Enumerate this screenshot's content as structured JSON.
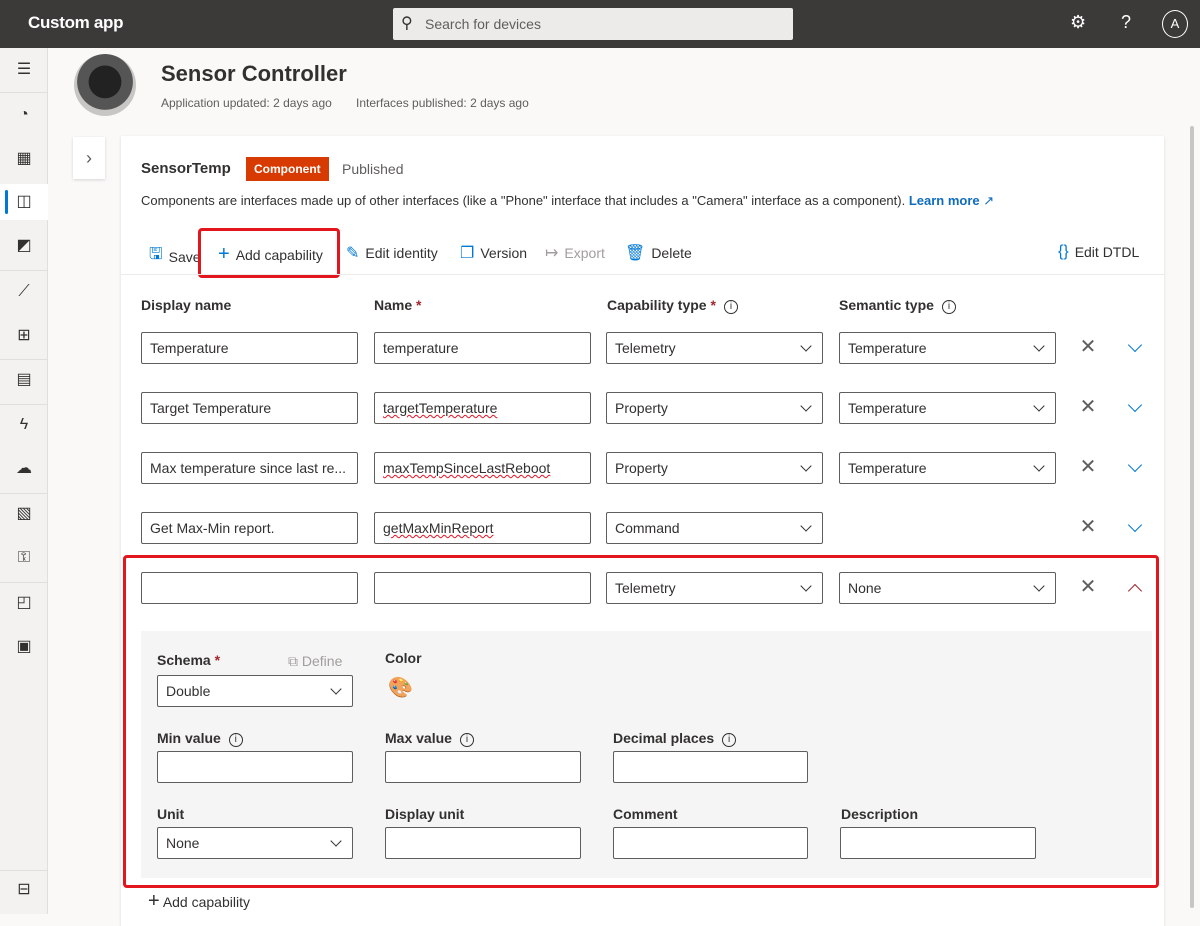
{
  "app": {
    "title": "Custom app",
    "search_placeholder": "Search for devices"
  },
  "topbar_icons": [
    "settings-icon",
    "help-icon",
    "account-icon"
  ],
  "sidebar": {
    "items": [
      "menu-icon",
      "dashboard-icon",
      "devices-icon",
      "device-templates-icon",
      "device-groups-icon",
      "analytics-icon",
      "dashboards-icon",
      "jobs-icon",
      "rules-icon",
      "data-export-icon",
      "audit-icon",
      "search-icon",
      "customize-icon",
      "admin-icon",
      "apps-icon"
    ],
    "active_index": 3
  },
  "header": {
    "title": "Sensor Controller",
    "app_updated": "Application updated: 2 days ago",
    "interfaces_published": "Interfaces published: 2 days ago"
  },
  "interface": {
    "name": "SensorTemp",
    "badge": "Component",
    "status": "Published",
    "badge_color": "#d83b01",
    "description": "Components are interfaces made up of other interfaces (like a \"Phone\" interface that includes a \"Camera\" interface as a component).",
    "learn_more": "Learn more"
  },
  "toolbar": {
    "save": "Save",
    "add_capability": "Add capability",
    "edit_identity": "Edit identity",
    "version": "Version",
    "export": "Export",
    "delete": "Delete",
    "edit_dtdl": "Edit DTDL"
  },
  "columns": {
    "display_name": "Display name",
    "name": "Name",
    "capability_type": "Capability type",
    "semantic_type": "Semantic type",
    "required_mark": "*"
  },
  "rows": [
    {
      "display_name": "Temperature",
      "name": "temperature",
      "capability_type": "Telemetry",
      "semantic_type": "Temperature"
    },
    {
      "display_name": "Target Temperature",
      "name": "targetTemperature",
      "capability_type": "Property",
      "semantic_type": "Temperature"
    },
    {
      "display_name": "Max temperature since last re...",
      "name": "maxTempSinceLastReboot",
      "capability_type": "Property",
      "semantic_type": "Temperature"
    },
    {
      "display_name": "Get Max-Min report.",
      "name": "getMaxMinReport",
      "capability_type": "Command",
      "semantic_type": ""
    },
    {
      "display_name": "",
      "name": "",
      "capability_type": "Telemetry",
      "semantic_type": "None"
    }
  ],
  "expanded": {
    "schema_label": "Schema",
    "schema_value": "Double",
    "define": "Define",
    "color_label": "Color",
    "min_value": "Min value",
    "max_value": "Max value",
    "decimal_places": "Decimal places",
    "unit": "Unit",
    "unit_value": "None",
    "display_unit": "Display unit",
    "comment": "Comment",
    "description": "Description"
  },
  "footer": {
    "add_capability": "Add capability"
  },
  "highlight_color": "#e3161d"
}
